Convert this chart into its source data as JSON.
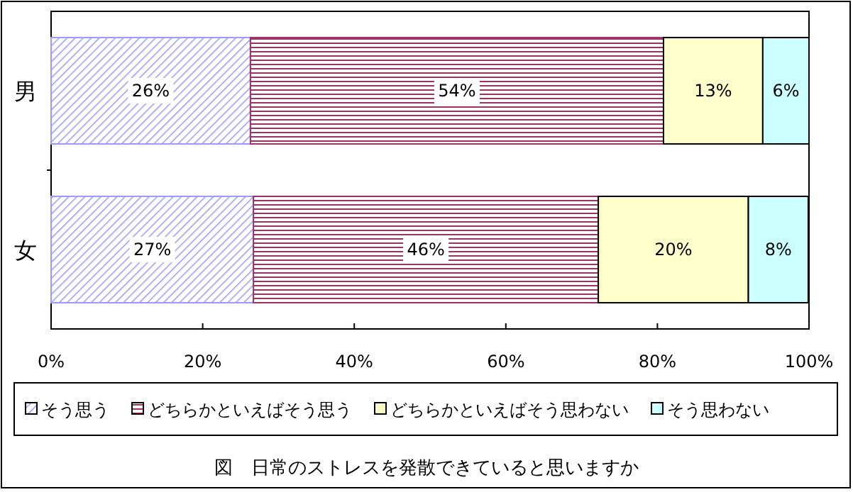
{
  "chart_data": {
    "type": "bar",
    "orientation": "horizontal",
    "stacked": true,
    "title": "図　日常のストレスを発散できていると思いますか",
    "categories": [
      "男",
      "女"
    ],
    "series": [
      {
        "name": "そう思う",
        "color": "#9999ff",
        "values": [
          26.3,
          26.7
        ],
        "value_labels": [
          "26%",
          "27%"
        ]
      },
      {
        "name": "どちらかといえばそう思う",
        "color": "#993366",
        "values": [
          54.5,
          45.5
        ],
        "value_labels": [
          "54%",
          "46%"
        ]
      },
      {
        "name": "どちらかといえばそう思わない",
        "color": "#ffffcc",
        "values": [
          13.1,
          19.8
        ],
        "value_labels": [
          "13%",
          "20%"
        ]
      },
      {
        "name": "そう思わない",
        "color": "#ccffff",
        "values": [
          6.1,
          7.9
        ],
        "value_labels": [
          "6%",
          "8%"
        ]
      }
    ],
    "xlim": [
      0,
      100
    ],
    "xticks": [
      {
        "value": 0,
        "label": "0%"
      },
      {
        "value": 20,
        "label": "20%"
      },
      {
        "value": 40,
        "label": "40%"
      },
      {
        "value": 60,
        "label": "60%"
      },
      {
        "value": 80,
        "label": "80%"
      },
      {
        "value": 100,
        "label": "100%"
      }
    ],
    "legend": "bottom"
  }
}
